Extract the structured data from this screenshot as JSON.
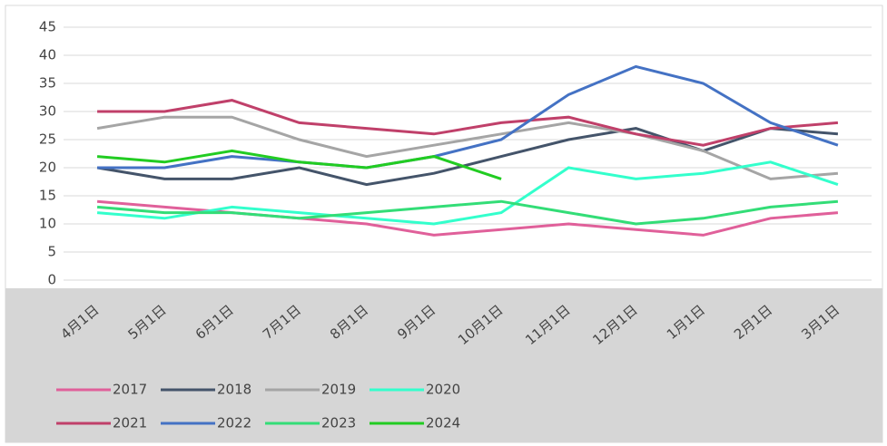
{
  "chart_data": {
    "type": "line",
    "categories": [
      "4月1日",
      "5月1日",
      "6月1日",
      "7月1日",
      "8月1日",
      "9月1日",
      "10月1日",
      "11月1日",
      "12月1日",
      "1月1日",
      "2月1日",
      "3月1日"
    ],
    "ylim": [
      0,
      45
    ],
    "yticks": [
      0,
      5,
      10,
      15,
      20,
      25,
      30,
      35,
      40,
      45
    ],
    "grid": true,
    "legend": "bottom",
    "series": [
      {
        "name": "2017",
        "color": "#e0609a",
        "values": [
          14,
          13,
          12,
          11,
          10,
          8,
          9,
          10,
          9,
          8,
          11,
          12
        ]
      },
      {
        "name": "2018",
        "color": "#44546a",
        "values": [
          20,
          18,
          18,
          20,
          17,
          19,
          22,
          25,
          27,
          23,
          27,
          26
        ]
      },
      {
        "name": "2019",
        "color": "#a5a5a5",
        "values": [
          27,
          29,
          29,
          25,
          22,
          24,
          26,
          28,
          26,
          23,
          18,
          19
        ]
      },
      {
        "name": "2020",
        "color": "#33ffcc",
        "values": [
          12,
          11,
          13,
          12,
          11,
          10,
          12,
          20,
          18,
          19,
          21,
          17
        ]
      },
      {
        "name": "2021",
        "color": "#c0406a",
        "values": [
          30,
          30,
          32,
          28,
          27,
          26,
          28,
          29,
          26,
          24,
          27,
          28
        ]
      },
      {
        "name": "2022",
        "color": "#4472c4",
        "values": [
          20,
          20,
          22,
          21,
          20,
          22,
          25,
          33,
          38,
          35,
          28,
          24
        ]
      },
      {
        "name": "2023",
        "color": "#33dd77",
        "values": [
          13,
          12,
          12,
          11,
          12,
          13,
          14,
          12,
          10,
          11,
          13,
          14
        ]
      },
      {
        "name": "2024",
        "color": "#22cc22",
        "values": [
          22,
          21,
          23,
          21,
          20,
          22,
          18,
          null,
          null,
          null,
          null,
          null
        ]
      }
    ]
  }
}
